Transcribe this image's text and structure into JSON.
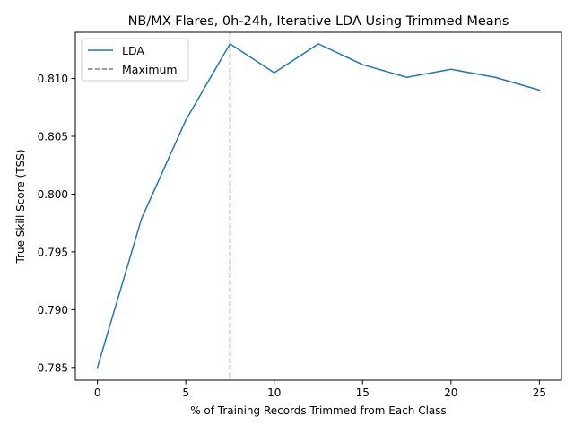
{
  "chart_data": {
    "type": "line",
    "title": "NB/MX Flares, 0h-24h, Iterative LDA Using Trimmed Means",
    "xlabel": "% of Training Records Trimmed from Each Class",
    "ylabel": "True Skill Score (TSS)",
    "xlim": [
      -1.25,
      26.25
    ],
    "ylim": [
      0.7839,
      0.814
    ],
    "x_ticks": [
      0,
      5,
      10,
      15,
      20,
      25
    ],
    "y_ticks": [
      0.785,
      0.79,
      0.795,
      0.8,
      0.805,
      0.81
    ],
    "y_tick_labels": [
      "0.785",
      "0.790",
      "0.795",
      "0.800",
      "0.805",
      "0.810"
    ],
    "grid": false,
    "legend_position": "upper-left",
    "series": [
      {
        "name": "LDA",
        "color": "#1f77b4",
        "style": "solid",
        "x": [
          0,
          2.5,
          5,
          7.5,
          10,
          12.5,
          15,
          17.5,
          20,
          22.5,
          25
        ],
        "values": [
          0.785,
          0.7979,
          0.8064,
          0.813,
          0.8105,
          0.813,
          0.8112,
          0.8101,
          0.8108,
          0.8101,
          0.809
        ]
      }
    ],
    "reference_lines": [
      {
        "name": "Maximum",
        "orientation": "vertical",
        "x": 7.5,
        "color": "#808080",
        "style": "dashed"
      }
    ]
  }
}
